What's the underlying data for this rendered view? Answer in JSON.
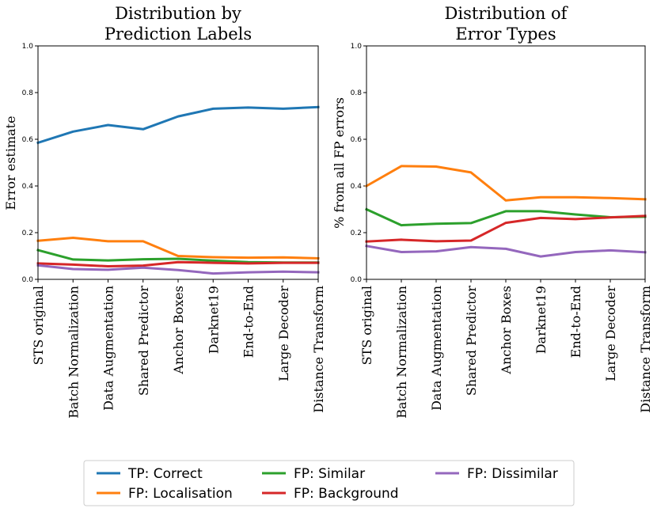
{
  "chart_data": [
    {
      "type": "line",
      "title_lines": [
        "Distribution by",
        "Prediction Labels"
      ],
      "ylabel": "Error estimate",
      "xlabel": "",
      "ylim": [
        0,
        1.0
      ],
      "yticks": [
        "0.0",
        "0.2",
        "0.4",
        "0.6",
        "0.8",
        "1.0"
      ],
      "categories": [
        "STS original",
        "Batch Normalization",
        "Data Augmentation",
        "Shared Predictor",
        "Anchor Boxes",
        "Darknet19",
        "End-to-End",
        "Large Decoder",
        "Distance Transform"
      ],
      "series": [
        {
          "name": "TP: Correct",
          "values": [
            0.585,
            0.633,
            0.661,
            0.643,
            0.698,
            0.731,
            0.736,
            0.731,
            0.738
          ]
        },
        {
          "name": "FP: Localisation",
          "values": [
            0.165,
            0.178,
            0.163,
            0.163,
            0.1,
            0.095,
            0.093,
            0.094,
            0.09
          ]
        },
        {
          "name": "FP: Similar",
          "values": [
            0.125,
            0.085,
            0.081,
            0.086,
            0.088,
            0.08,
            0.074,
            0.072,
            0.072
          ]
        },
        {
          "name": "FP: Background",
          "values": [
            0.068,
            0.063,
            0.056,
            0.059,
            0.074,
            0.071,
            0.068,
            0.071,
            0.071
          ]
        },
        {
          "name": "FP: Dissimilar",
          "values": [
            0.06,
            0.044,
            0.041,
            0.05,
            0.04,
            0.025,
            0.03,
            0.033,
            0.03
          ]
        }
      ]
    },
    {
      "type": "line",
      "title_lines": [
        "Distribution of",
        "Error Types"
      ],
      "ylabel": "% from all FP errors",
      "xlabel": "",
      "ylim": [
        0,
        1.0
      ],
      "yticks": [
        "0.0",
        "0.2",
        "0.4",
        "0.6",
        "0.8",
        "1.0"
      ],
      "categories": [
        "STS original",
        "Batch Normalization",
        "Data Augmentation",
        "Shared Predictor",
        "Anchor Boxes",
        "Darknet19",
        "End-to-End",
        "Large Decoder",
        "Distance Transform"
      ],
      "series": [
        {
          "name": "FP: Localisation",
          "values": [
            0.4,
            0.485,
            0.483,
            0.458,
            0.338,
            0.352,
            0.352,
            0.348,
            0.343
          ]
        },
        {
          "name": "FP: Similar",
          "values": [
            0.3,
            0.232,
            0.238,
            0.241,
            0.292,
            0.292,
            0.278,
            0.266,
            0.268
          ]
        },
        {
          "name": "FP: Background",
          "values": [
            0.162,
            0.17,
            0.163,
            0.166,
            0.242,
            0.263,
            0.258,
            0.265,
            0.272
          ]
        },
        {
          "name": "FP: Dissimilar",
          "values": [
            0.143,
            0.117,
            0.12,
            0.138,
            0.131,
            0.098,
            0.117,
            0.124,
            0.116
          ]
        }
      ]
    }
  ],
  "legend": {
    "items": [
      {
        "label": "TP: Correct",
        "color": "#1f77b4"
      },
      {
        "label": "FP: Localisation",
        "color": "#ff7f0e"
      },
      {
        "label": "FP: Similar",
        "color": "#2ca02c"
      },
      {
        "label": "FP: Background",
        "color": "#d62728"
      },
      {
        "label": "FP: Dissimilar",
        "color": "#9467bd"
      }
    ]
  }
}
